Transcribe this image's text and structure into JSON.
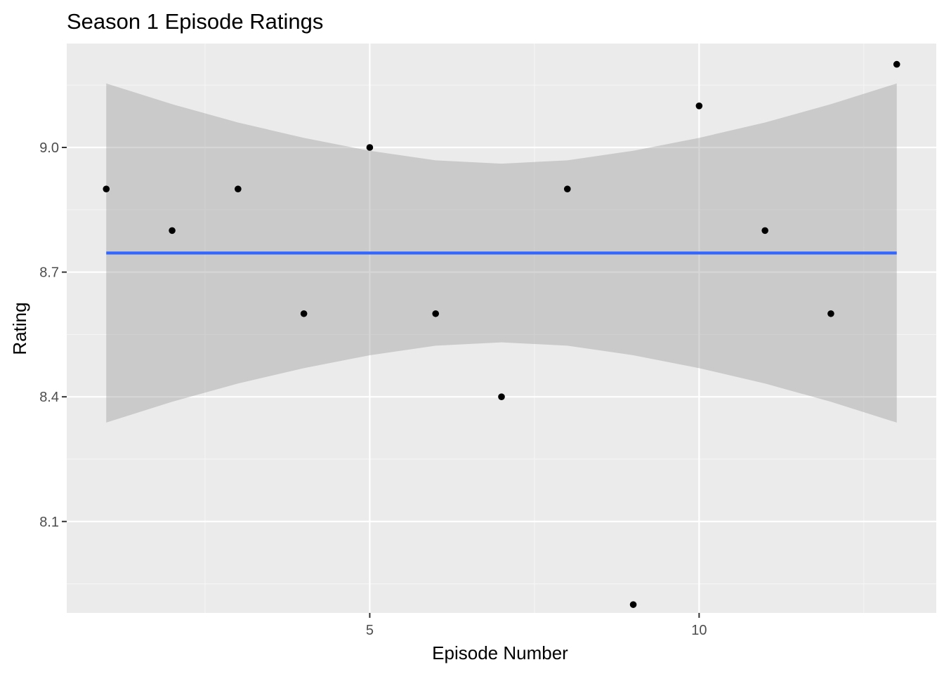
{
  "chart_data": {
    "type": "scatter",
    "title": "Season 1 Episode Ratings",
    "xlabel": "Episode Number",
    "ylabel": "Rating",
    "xlim": [
      0.4,
      13.6
    ],
    "ylim": [
      7.88,
      9.25
    ],
    "x_major_ticks": [
      5,
      10
    ],
    "x_minor_ticks": [
      2.5,
      7.5,
      12.5
    ],
    "y_major_ticks": [
      8.1,
      8.4,
      8.7,
      9.0
    ],
    "y_minor_ticks": [
      7.95,
      8.25,
      8.55,
      8.85,
      9.15
    ],
    "x_tick_labels": [
      "5",
      "10"
    ],
    "y_tick_labels": [
      "8.1",
      "8.4",
      "8.7",
      "9.0"
    ],
    "grid": true,
    "series": [
      {
        "x": [
          1,
          2,
          3,
          4,
          5,
          6,
          7,
          8,
          9,
          10,
          11,
          12,
          13
        ],
        "y": [
          8.9,
          8.8,
          8.9,
          8.6,
          9.0,
          8.6,
          8.4,
          8.9,
          7.9,
          9.1,
          8.8,
          8.6,
          9.2
        ]
      }
    ],
    "smooth": {
      "method": "lm",
      "x": [
        1,
        13
      ],
      "y": [
        8.746,
        8.746
      ],
      "ci_x": [
        1,
        2,
        3,
        4,
        5,
        6,
        7,
        8,
        9,
        10,
        11,
        12,
        13
      ],
      "ci_lower": [
        8.338,
        8.388,
        8.432,
        8.469,
        8.5,
        8.523,
        8.531,
        8.523,
        8.5,
        8.469,
        8.432,
        8.388,
        8.338
      ],
      "ci_upper": [
        9.154,
        9.104,
        9.06,
        9.023,
        8.992,
        8.969,
        8.961,
        8.969,
        8.992,
        9.023,
        9.06,
        9.104,
        9.154
      ]
    },
    "colors": {
      "panel_background": "#ebebeb",
      "grid_major": "#ffffff",
      "grid_minor": "#f5f5f5",
      "points": "#000000",
      "smooth_line": "#3366ff",
      "ribbon": "#999999",
      "tick_label": "#4d4d4d",
      "tick_mark": "#333333"
    }
  }
}
